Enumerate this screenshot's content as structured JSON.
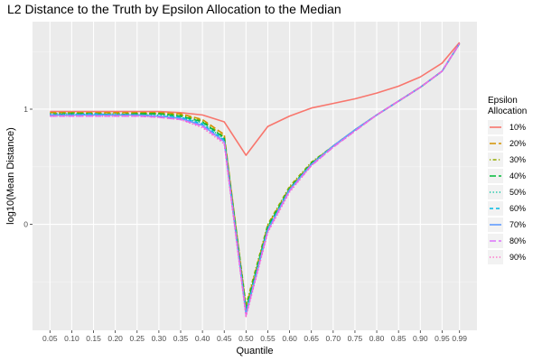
{
  "chart_data": {
    "type": "line",
    "title": "L2 Distance to the Truth by Epsilon Allocation to the Median",
    "xlabel": "Quantile",
    "ylabel": "log10(Mean Distance)",
    "x_tick_labels": [
      "0.05",
      "0.10",
      "0.15",
      "0.20",
      "0.25",
      "0.30",
      "0.35",
      "0.40",
      "0.45",
      "0.50",
      "0.55",
      "0.60",
      "0.65",
      "0.70",
      "0.75",
      "0.80",
      "0.85",
      "0.90",
      "0.95",
      "0.99"
    ],
    "x": [
      0.05,
      0.1,
      0.15,
      0.2,
      0.25,
      0.3,
      0.35,
      0.4,
      0.45,
      0.5,
      0.55,
      0.6,
      0.65,
      0.7,
      0.75,
      0.8,
      0.85,
      0.9,
      0.95,
      0.99
    ],
    "y_ticks": [
      0,
      1
    ],
    "y_tick_labels": [
      "0",
      "1"
    ],
    "ylim": [
      -0.92,
      1.76
    ],
    "xlim": [
      0.01,
      1.03
    ],
    "grid": true,
    "legend": {
      "title_lines": [
        "Epsilon",
        "Allocation"
      ],
      "placement": "right"
    },
    "series": [
      {
        "name": "10%",
        "color": "#F8766D",
        "dash": "solid",
        "values": [
          0.98,
          0.98,
          0.98,
          0.98,
          0.98,
          0.98,
          0.97,
          0.95,
          0.89,
          0.6,
          0.85,
          0.94,
          1.01,
          1.05,
          1.09,
          1.14,
          1.2,
          1.28,
          1.4,
          1.58
        ]
      },
      {
        "name": "20%",
        "color": "#D39200",
        "dash": "longdash",
        "values": [
          0.97,
          0.97,
          0.97,
          0.97,
          0.97,
          0.97,
          0.96,
          0.91,
          0.78,
          -0.72,
          -0.01,
          0.32,
          0.53,
          0.68,
          0.82,
          0.95,
          1.07,
          1.19,
          1.33,
          1.57
        ]
      },
      {
        "name": "30%",
        "color": "#93AA00",
        "dash": "dotdash",
        "values": [
          0.96,
          0.97,
          0.96,
          0.96,
          0.96,
          0.96,
          0.95,
          0.9,
          0.76,
          -0.7,
          0.0,
          0.33,
          0.54,
          0.68,
          0.82,
          0.95,
          1.07,
          1.19,
          1.33,
          1.57
        ]
      },
      {
        "name": "40%",
        "color": "#00BA38",
        "dash": "longdash",
        "values": [
          0.95,
          0.96,
          0.96,
          0.95,
          0.96,
          0.96,
          0.94,
          0.89,
          0.75,
          -0.74,
          -0.02,
          0.31,
          0.53,
          0.68,
          0.82,
          0.95,
          1.07,
          1.19,
          1.33,
          1.57
        ]
      },
      {
        "name": "50%",
        "color": "#00C19F",
        "dash": "dotted",
        "values": [
          0.96,
          0.96,
          0.95,
          0.96,
          0.95,
          0.95,
          0.93,
          0.88,
          0.74,
          -0.75,
          -0.03,
          0.31,
          0.52,
          0.68,
          0.82,
          0.95,
          1.07,
          1.19,
          1.33,
          1.57
        ]
      },
      {
        "name": "60%",
        "color": "#00B9E3",
        "dash": "dashed",
        "values": [
          0.95,
          0.95,
          0.96,
          0.95,
          0.95,
          0.94,
          0.93,
          0.87,
          0.73,
          -0.77,
          -0.04,
          0.3,
          0.52,
          0.68,
          0.82,
          0.95,
          1.07,
          1.19,
          1.33,
          1.57
        ]
      },
      {
        "name": "70%",
        "color": "#619CFF",
        "dash": "solid",
        "values": [
          0.95,
          0.95,
          0.95,
          0.95,
          0.95,
          0.94,
          0.92,
          0.86,
          0.72,
          -0.78,
          -0.05,
          0.3,
          0.52,
          0.68,
          0.82,
          0.95,
          1.07,
          1.19,
          1.33,
          1.57
        ]
      },
      {
        "name": "80%",
        "color": "#DB72FB",
        "dash": "longdash",
        "values": [
          0.94,
          0.94,
          0.94,
          0.94,
          0.94,
          0.93,
          0.91,
          0.85,
          0.71,
          -0.79,
          -0.06,
          0.29,
          0.51,
          0.67,
          0.81,
          0.95,
          1.07,
          1.19,
          1.33,
          1.57
        ]
      },
      {
        "name": "90%",
        "color": "#FF61C3",
        "dash": "dotted",
        "values": [
          0.94,
          0.94,
          0.94,
          0.94,
          0.94,
          0.93,
          0.91,
          0.84,
          0.7,
          -0.8,
          -0.07,
          0.28,
          0.51,
          0.67,
          0.81,
          0.95,
          1.07,
          1.19,
          1.33,
          1.57
        ]
      }
    ]
  }
}
